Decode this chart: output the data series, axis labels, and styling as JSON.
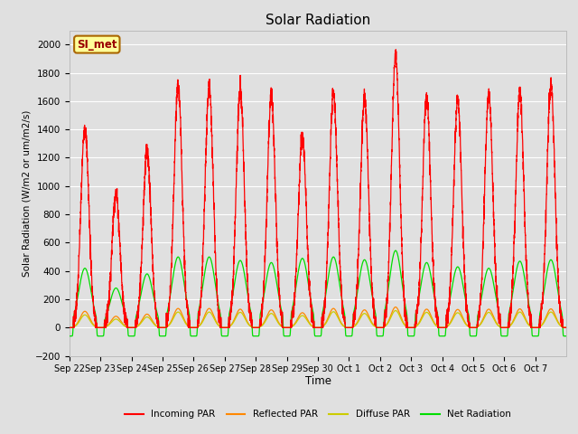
{
  "title": "Solar Radiation",
  "ylabel": "Solar Radiation (W/m2 or um/m2/s)",
  "xlabel": "Time",
  "ylim": [
    -200,
    2100
  ],
  "yticks": [
    -200,
    0,
    200,
    400,
    600,
    800,
    1000,
    1200,
    1400,
    1600,
    1800,
    2000
  ],
  "annotation": "SI_met",
  "bg_color": "#e0e0e0",
  "grid_color": "#ffffff",
  "series": {
    "incoming": {
      "color": "#ff0000",
      "label": "Incoming PAR"
    },
    "reflected": {
      "color": "#ff8800",
      "label": "Reflected PAR"
    },
    "diffuse": {
      "color": "#cccc00",
      "label": "Diffuse PAR"
    },
    "net": {
      "color": "#00dd00",
      "label": "Net Radiation"
    }
  },
  "x_tick_labels": [
    "Sep 22",
    "Sep 23",
    "Sep 24",
    "Sep 25",
    "Sep 26",
    "Sep 27",
    "Sep 28",
    "Sep 29",
    "Sep 30",
    "Oct 1",
    "Oct 2",
    "Oct 3",
    "Oct 4",
    "Oct 5",
    "Oct 6",
    "Oct 7"
  ],
  "num_days": 16,
  "incoming_peaks": [
    1420,
    950,
    1250,
    1710,
    1700,
    1670,
    1640,
    1350,
    1650,
    1630,
    1920,
    1620,
    1610,
    1650,
    1660,
    1720
  ],
  "net_peaks": [
    420,
    280,
    380,
    500,
    500,
    475,
    460,
    490,
    500,
    480,
    545,
    460,
    430,
    420,
    470,
    480
  ],
  "reflected_peaks": [
    115,
    80,
    95,
    135,
    135,
    130,
    125,
    105,
    135,
    125,
    145,
    130,
    128,
    130,
    132,
    132
  ],
  "diffuse_peaks": [
    90,
    60,
    75,
    110,
    110,
    108,
    100,
    85,
    112,
    100,
    120,
    108,
    105,
    108,
    110,
    110
  ],
  "night_net": -60,
  "pts_per_day": 288
}
